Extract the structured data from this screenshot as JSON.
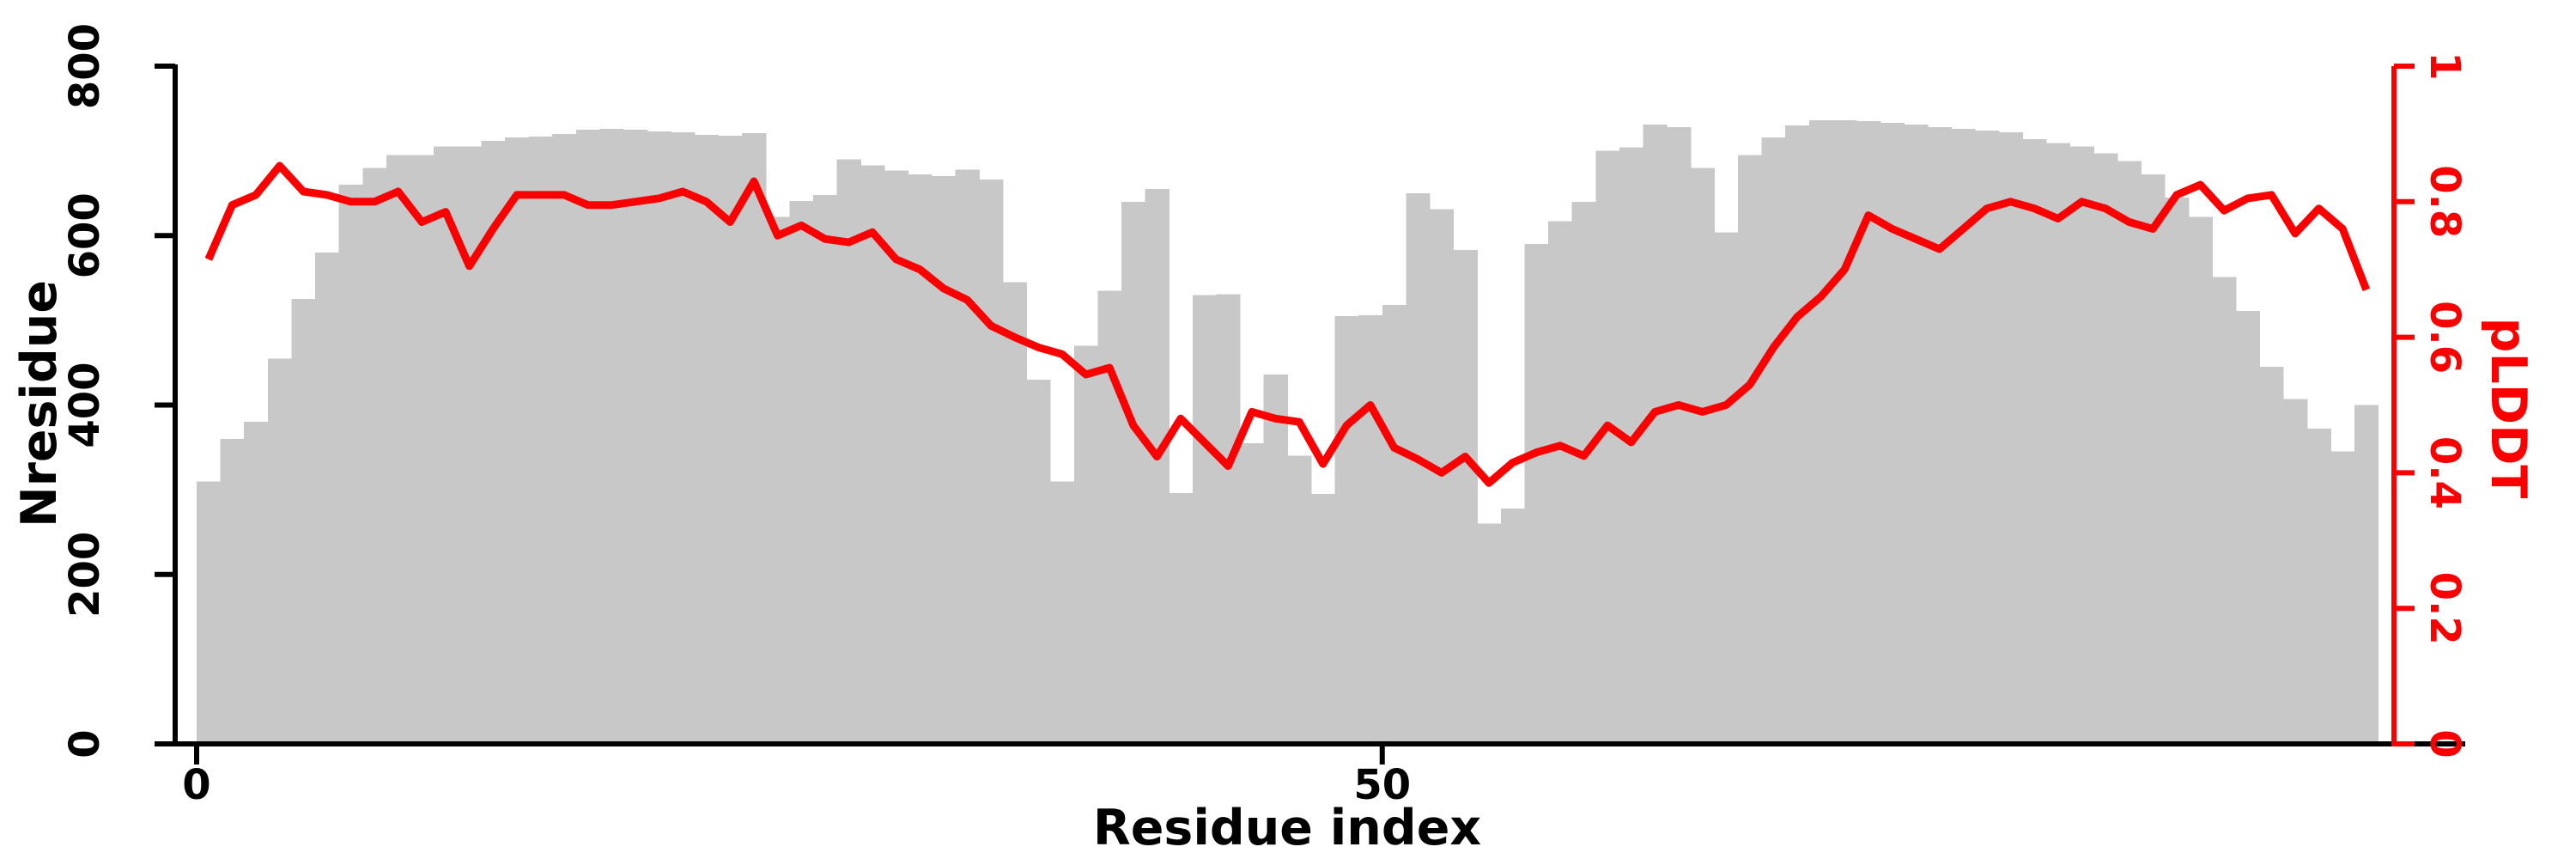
{
  "chart_data": {
    "type": "bar",
    "title": "",
    "xlabel": "Residue index",
    "ylabel_left": "Nresidue",
    "ylabel_right": "pLDDT",
    "x_axis": {
      "tick_values": [
        0,
        50
      ],
      "tick_labels": [
        "0",
        "50"
      ],
      "range_shown": [
        0,
        92
      ]
    },
    "y_left_axis": {
      "label": "Nresidue",
      "min": 0,
      "max": 800,
      "tick_values": [
        0,
        200,
        400,
        600,
        800
      ],
      "tick_labels": [
        "0",
        "200",
        "400",
        "600",
        "800"
      ]
    },
    "y_right_axis": {
      "label": "pLDDT",
      "min": 0,
      "max": 1,
      "tick_values": [
        0,
        0.2,
        0.4,
        0.6,
        0.8,
        1
      ],
      "tick_labels": [
        "0",
        "0.2",
        "0.4",
        "0.6",
        "0.8",
        "1"
      ]
    },
    "bars": {
      "axis": "left",
      "x_convention": "bar i spans [i-1, i] on the residue-index axis, i = 1..92",
      "color": "#c8c8c8",
      "values": [
        310,
        360,
        380,
        455,
        525,
        580,
        660,
        680,
        695,
        695,
        705,
        705,
        712,
        716,
        717,
        720,
        725,
        726,
        725,
        723,
        722,
        719,
        718,
        721,
        622,
        641,
        648,
        690,
        683,
        677,
        672,
        670,
        678,
        666,
        545,
        430,
        310,
        470,
        535,
        640,
        655,
        296,
        530,
        531,
        355,
        436,
        340,
        295,
        505,
        506,
        518,
        650,
        631,
        583,
        260,
        278,
        590,
        617,
        640,
        700,
        704,
        731,
        728,
        680,
        604,
        695,
        716,
        730,
        736,
        736,
        735,
        733,
        731,
        728,
        726,
        724,
        722,
        714,
        709,
        705,
        697,
        688,
        672,
        645,
        622,
        551,
        511,
        445,
        407,
        372,
        345,
        400
      ]
    },
    "line": {
      "name": "pLDDT",
      "axis": "right",
      "color": "#fb0000",
      "x": [
        0.5,
        1.5,
        2.5,
        3.5,
        4.5,
        5.5,
        6.5,
        7.5,
        8.5,
        9.5,
        10.5,
        11.5,
        12.5,
        13.5,
        14.5,
        15.5,
        16.5,
        17.5,
        18.5,
        19.5,
        20.5,
        21.5,
        22.5,
        23.5,
        24.5,
        25.5,
        26.5,
        27.5,
        28.5,
        29.5,
        30.5,
        31.5,
        32.5,
        33.5,
        34.5,
        35.5,
        36.5,
        37.5,
        38.5,
        39.5,
        40.5,
        41.5,
        42.5,
        43.5,
        44.5,
        45.5,
        46.5,
        47.5,
        48.5,
        49.5,
        50.5,
        51.5,
        52.5,
        53.5,
        54.5,
        55.5,
        56.5,
        57.5,
        58.5,
        59.5,
        60.5,
        61.5,
        62.5,
        63.5,
        64.5,
        65.5,
        66.5,
        67.5,
        68.5,
        69.5,
        70.5,
        71.5,
        72.5,
        73.5,
        74.5,
        75.5,
        76.5,
        77.5,
        78.5,
        79.5,
        80.5,
        81.5,
        82.5,
        83.5,
        84.5,
        85.5,
        86.5,
        87.5,
        88.5,
        89.5,
        90.5,
        91.5
      ],
      "y": [
        0.715,
        0.795,
        0.81,
        0.853,
        0.815,
        0.81,
        0.8,
        0.8,
        0.815,
        0.77,
        0.785,
        0.705,
        0.76,
        0.81,
        0.81,
        0.81,
        0.795,
        0.795,
        0.8,
        0.805,
        0.815,
        0.8,
        0.77,
        0.83,
        0.75,
        0.765,
        0.745,
        0.74,
        0.755,
        0.715,
        0.7,
        0.672,
        0.655,
        0.617,
        0.6,
        0.585,
        0.575,
        0.545,
        0.555,
        0.47,
        0.424,
        0.48,
        0.445,
        0.41,
        0.49,
        0.48,
        0.475,
        0.413,
        0.47,
        0.5,
        0.437,
        0.42,
        0.4,
        0.424,
        0.385,
        0.415,
        0.43,
        0.44,
        0.425,
        0.47,
        0.445,
        0.49,
        0.5,
        0.49,
        0.5,
        0.53,
        0.585,
        0.63,
        0.66,
        0.7,
        0.78,
        0.76,
        0.745,
        0.73,
        0.76,
        0.79,
        0.8,
        0.79,
        0.775,
        0.8,
        0.79,
        0.77,
        0.76,
        0.81,
        0.825,
        0.787,
        0.805,
        0.81,
        0.753,
        0.79,
        0.76,
        0.67
      ]
    },
    "layout_hints": {
      "grid": false,
      "legend": "none",
      "background": "#ffffff",
      "axis_color": "#000000",
      "right_axis_color": "#fb0000",
      "tick_label_rotation_left": -90,
      "tick_label_rotation_right": 90
    }
  },
  "colors": {
    "bar": "#c8c8c8",
    "line": "#fb0000",
    "axis": "#000000",
    "background": "#ffffff"
  }
}
